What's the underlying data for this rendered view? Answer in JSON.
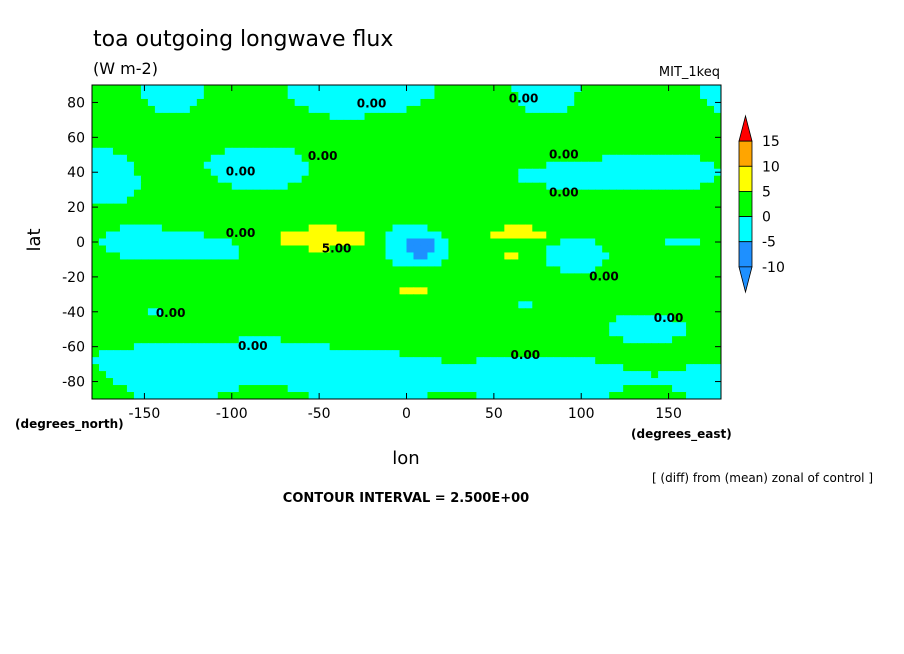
{
  "chart_data": {
    "type": "heatmap",
    "title": "toa outgoing longwave flux",
    "subtitle": "(W m-2)",
    "model_label": "MIT_1keq",
    "xlabel": "lon",
    "ylabel": "lat",
    "x_unit": "(degrees_east)",
    "y_unit": "(degrees_north)",
    "xlim": [
      -180,
      180
    ],
    "ylim": [
      -90,
      90
    ],
    "x_ticks": [
      -150,
      -100,
      -50,
      0,
      50,
      100,
      150
    ],
    "y_ticks": [
      80,
      60,
      40,
      20,
      0,
      -20,
      -40,
      -60,
      -80
    ],
    "x_tick_labels": [
      "-150",
      "-100",
      "-50",
      "0",
      "50",
      "100",
      "150"
    ],
    "y_tick_labels": [
      "80",
      "60",
      "40",
      "20",
      "0",
      "-20",
      "-40",
      "-60",
      "-80"
    ],
    "note": "[ (diff) from (mean) zonal of control ]",
    "contour_interval": "CONTOUR INTERVAL = 2.500E+00",
    "colorbar": {
      "levels": [
        -10,
        -5,
        0,
        5,
        10,
        15
      ],
      "labels": [
        "15",
        "10",
        "5",
        "0",
        "-5",
        "-10"
      ],
      "bins": [
        {
          "range": [
            -15,
            -10
          ],
          "color": "#1e90ff"
        },
        {
          "range": [
            -10,
            -5
          ],
          "color": "#1e90ff"
        },
        {
          "range": [
            -5,
            0
          ],
          "color": "#00ffff"
        },
        {
          "range": [
            0,
            5
          ],
          "color": "#00ff00"
        },
        {
          "range": [
            5,
            10
          ],
          "color": "#ffff00"
        },
        {
          "range": [
            10,
            15
          ],
          "color": "#ffa500"
        },
        {
          "range": [
            15,
            20
          ],
          "color": "#ff0000"
        }
      ]
    },
    "contour_labels": [
      {
        "text": "0.00",
        "lon": -20,
        "lat": 77
      },
      {
        "text": "0.00",
        "lon": 67,
        "lat": 80
      },
      {
        "text": "0.00",
        "lon": -48,
        "lat": 47
      },
      {
        "text": "0.00",
        "lon": -95,
        "lat": 38
      },
      {
        "text": "0.00",
        "lon": 90,
        "lat": 48
      },
      {
        "text": "0.00",
        "lon": 90,
        "lat": 26
      },
      {
        "text": "0.00",
        "lon": -95,
        "lat": 3
      },
      {
        "text": "5.00",
        "lon": -40,
        "lat": -6
      },
      {
        "text": "0.00",
        "lon": 113,
        "lat": -22
      },
      {
        "text": "0.00",
        "lon": -135,
        "lat": -43
      },
      {
        "text": "0.00",
        "lon": 150,
        "lat": -46
      },
      {
        "text": "0.00",
        "lon": -88,
        "lat": -62
      },
      {
        "text": "0.00",
        "lon": 68,
        "lat": -67
      }
    ]
  }
}
